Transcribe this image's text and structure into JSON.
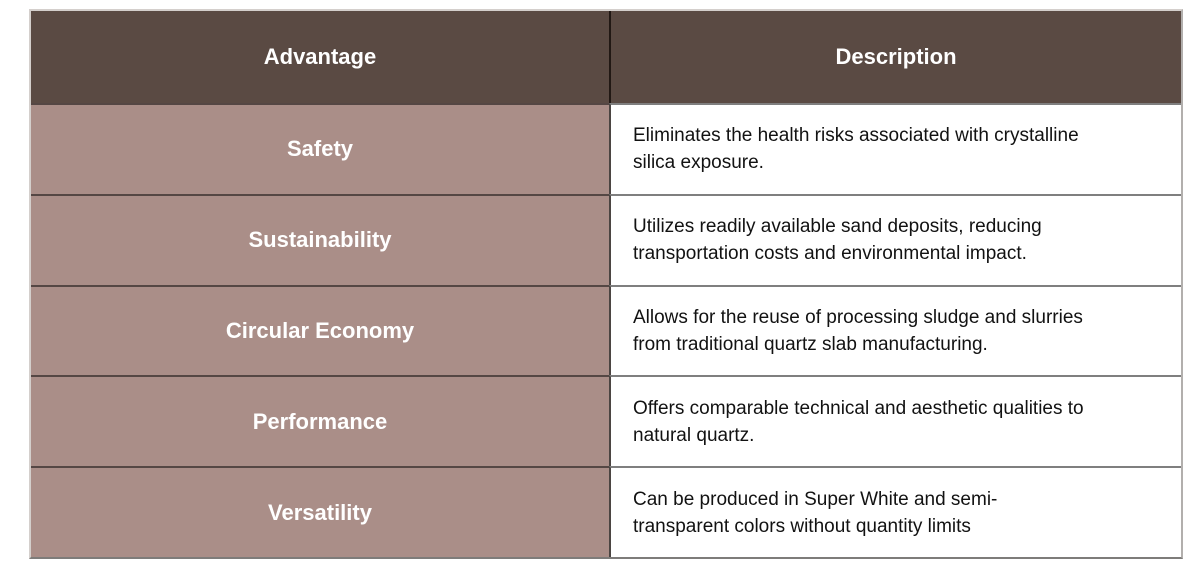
{
  "table": {
    "columns": [
      {
        "label": "Advantage"
      },
      {
        "label": "Description"
      }
    ],
    "rows": [
      {
        "advantage": "Safety",
        "description": "Eliminates the health risks associated with crystalline\nsilica exposure."
      },
      {
        "advantage": "Sustainability",
        "description": "Utilizes readily available sand deposits, reducing\ntransportation costs and environmental impact."
      },
      {
        "advantage": "Circular Economy",
        "description": "Allows for the reuse of processing sludge and slurries\nfrom traditional quartz slab manufacturing."
      },
      {
        "advantage": "Performance",
        "description": "Offers comparable technical and aesthetic qualities to\nnatural quartz."
      },
      {
        "advantage": "Versatility",
        "description": "Can be produced in Super White and semi-\ntransparent colors without quantity limits"
      }
    ],
    "colors": {
      "header_background": "#5a4a43",
      "advantage_background": "#aa8e88",
      "description_background": "#ffffff",
      "header_text": "#ffffff",
      "advantage_text": "#ffffff",
      "description_text": "#121212"
    }
  }
}
